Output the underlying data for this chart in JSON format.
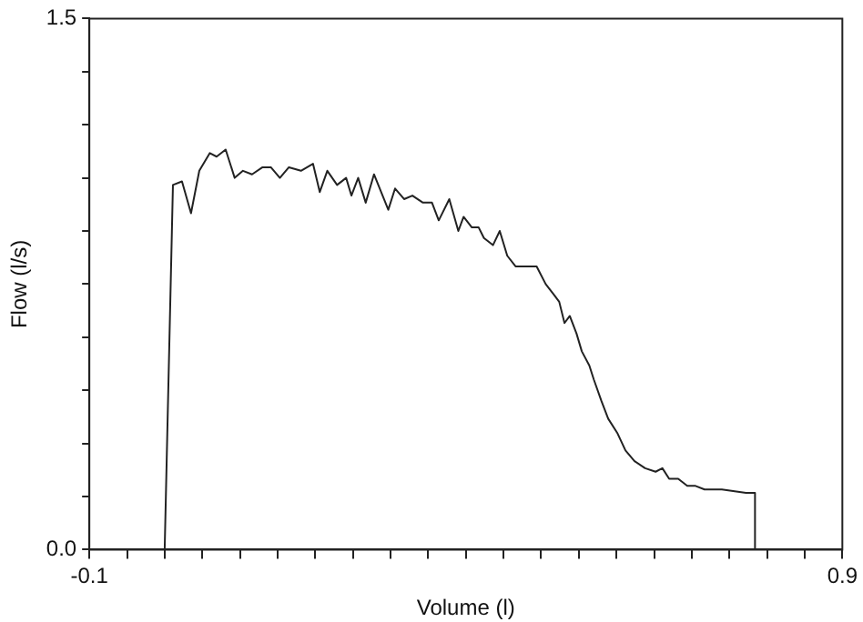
{
  "chart_data": {
    "type": "line",
    "xlabel": "Volume (l)",
    "ylabel": "Flow (l/s)",
    "series": [
      {
        "color": "#222222",
        "x": [
          0.0,
          0.011,
          0.023,
          0.035,
          0.046,
          0.06,
          0.069,
          0.081,
          0.093,
          0.104,
          0.116,
          0.13,
          0.141,
          0.153,
          0.165,
          0.181,
          0.197,
          0.206,
          0.216,
          0.229,
          0.241,
          0.248,
          0.257,
          0.267,
          0.278,
          0.297,
          0.306,
          0.318,
          0.329,
          0.343,
          0.355,
          0.364,
          0.378,
          0.39,
          0.397,
          0.408,
          0.417,
          0.424,
          0.436,
          0.445,
          0.455,
          0.466,
          0.48,
          0.494,
          0.506,
          0.517,
          0.524,
          0.531,
          0.538,
          0.547,
          0.554,
          0.564,
          0.57,
          0.58,
          0.589,
          0.601,
          0.612,
          0.624,
          0.638,
          0.652,
          0.661,
          0.67,
          0.682,
          0.694,
          0.705,
          0.717,
          0.728,
          0.74,
          0.772,
          0.784,
          0.784
        ],
        "values": [
          0,
          1.03,
          1.04,
          0.95,
          1.07,
          1.12,
          1.11,
          1.13,
          1.05,
          1.07,
          1.06,
          1.08,
          1.08,
          1.05,
          1.08,
          1.07,
          1.09,
          1.01,
          1.07,
          1.03,
          1.05,
          1.0,
          1.05,
          0.98,
          1.06,
          0.96,
          1.02,
          0.99,
          1.0,
          0.98,
          0.98,
          0.93,
          0.99,
          0.9,
          0.94,
          0.91,
          0.91,
          0.88,
          0.86,
          0.9,
          0.83,
          0.8,
          0.8,
          0.8,
          0.75,
          0.72,
          0.7,
          0.64,
          0.66,
          0.61,
          0.56,
          0.52,
          0.48,
          0.42,
          0.37,
          0.33,
          0.28,
          0.25,
          0.23,
          0.22,
          0.23,
          0.2,
          0.2,
          0.18,
          0.18,
          0.17,
          0.17,
          0.17,
          0.16,
          0.16,
          0
        ]
      }
    ],
    "xlim": [
      -0.1,
      0.9
    ],
    "xticks": [
      -0.1,
      {
        "value": -0.05,
        "label": null
      },
      {
        "value": 0,
        "label": null
      },
      {
        "value": 0.05,
        "label": null
      },
      {
        "value": 0.1,
        "label": null
      },
      {
        "value": 0.15,
        "label": null
      },
      {
        "value": 0.2,
        "label": null
      },
      {
        "value": 0.25,
        "label": null
      },
      {
        "value": 0.3,
        "label": null
      },
      {
        "value": 0.35,
        "label": null
      },
      {
        "value": 0.4,
        "label": null
      },
      {
        "value": 0.45,
        "label": null
      },
      {
        "value": 0.5,
        "label": null
      },
      {
        "value": 0.55,
        "label": null
      },
      {
        "value": 0.6,
        "label": null
      },
      {
        "value": 0.65,
        "label": null
      },
      {
        "value": 0.7,
        "label": null
      },
      {
        "value": 0.75,
        "label": null
      },
      {
        "value": 0.8,
        "label": null
      },
      {
        "value": 0.85,
        "label": null
      },
      0.9
    ],
    "ylim": [
      0,
      1.5
    ],
    "yticks": [
      {
        "value": 0,
        "label": "0.0"
      },
      {
        "value": 0.15,
        "label": null
      },
      {
        "value": 0.3,
        "label": null
      },
      {
        "value": 0.45,
        "label": null
      },
      {
        "value": 0.6,
        "label": null
      },
      {
        "value": 0.75,
        "label": null
      },
      {
        "value": 0.9,
        "label": null
      },
      {
        "value": 1.05,
        "label": null
      },
      {
        "value": 1.2,
        "label": null
      },
      {
        "value": 1.35,
        "label": null
      },
      {
        "value": 1.5,
        "label": "1.5"
      }
    ],
    "grid": false,
    "legend": false,
    "marker": "none",
    "line_style": "solid"
  }
}
